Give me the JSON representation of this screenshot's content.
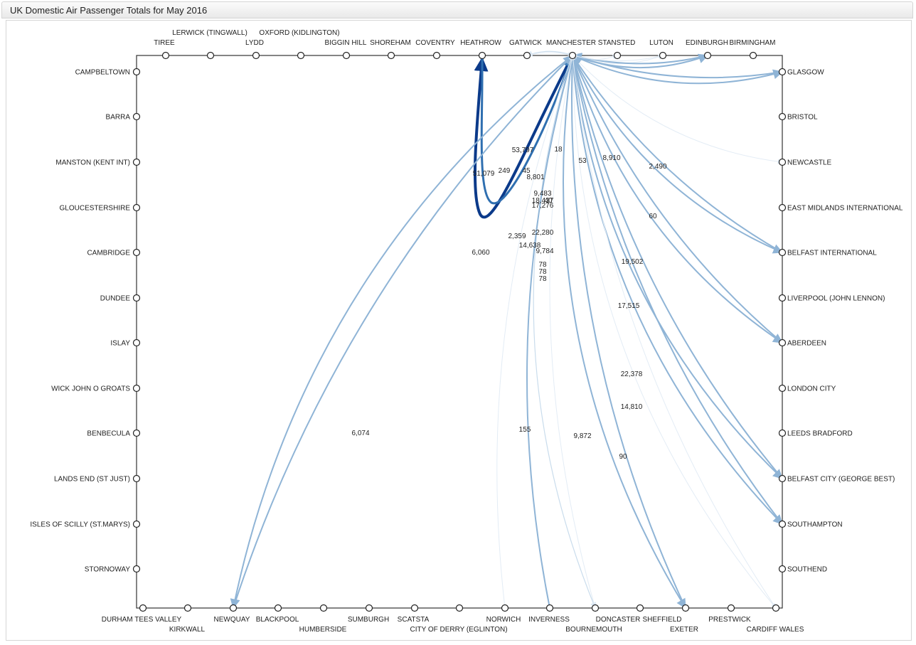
{
  "window": {
    "title": "UK Domestic Air Passenger Totals for May 2016"
  },
  "chart_data": {
    "type": "flow-diagram",
    "colors": {
      "flow_light": "#9ec0dc",
      "flow_mid": "#5f93c3",
      "flow_dark": "#0b3a8a",
      "flow_faint": "#dfeaf4"
    },
    "airports": {
      "top": [
        "TIREE",
        "LERWICK (TINGWALL)",
        "LYDD",
        "OXFORD (KIDLINGTON)",
        "BIGGIN HILL",
        "SHOREHAM",
        "COVENTRY",
        "HEATHROW",
        "GATWICK",
        "MANCHESTER",
        "STANSTED",
        "LUTON",
        "EDINBURGH",
        "BIRMINGHAM"
      ],
      "left": [
        "CAMPBELTOWN",
        "BARRA",
        "MANSTON (KENT INT)",
        "GLOUCESTERSHIRE",
        "CAMBRIDGE",
        "DUNDEE",
        "ISLAY",
        "WICK JOHN O GROATS",
        "BENBECULA",
        "LANDS END (ST JUST)",
        "ISLES OF SCILLY (ST.MARYS)",
        "STORNOWAY"
      ],
      "right": [
        "GLASGOW",
        "BRISTOL",
        "NEWCASTLE",
        "EAST MIDLANDS INTERNATIONAL",
        "BELFAST INTERNATIONAL",
        "LIVERPOOL (JOHN LENNON)",
        "ABERDEEN",
        "LONDON CITY",
        "LEEDS BRADFORD",
        "BELFAST CITY (GEORGE BEST)",
        "SOUTHAMPTON",
        "SOUTHEND"
      ],
      "bottom": [
        "DURHAM TEES VALLEY",
        "KIRKWALL",
        "NEWQUAY",
        "BLACKPOOL",
        "HUMBERSIDE",
        "SUMBURGH",
        "SCATSTA",
        "CITY OF DERRY (EGLINTON)",
        "NORWICH",
        "INVERNESS",
        "BOURNEMOUTH",
        "DONCASTER",
        "SHEFFIELD",
        "EXETER",
        "PRESTWICK",
        "CARDIFF WALES"
      ]
    },
    "flows": [
      {
        "from": "MANCHESTER",
        "to": "HEATHROW",
        "passengers": "53,797"
      },
      {
        "from": "HEATHROW",
        "to": "MANCHESTER",
        "passengers": "51,079"
      },
      {
        "from": "MANCHESTER",
        "to": "GATWICK",
        "passengers": "249"
      },
      {
        "from": "MANCHESTER",
        "to": "LUTON",
        "passengers": "18"
      },
      {
        "from": "MANCHESTER",
        "to": "STANSTED",
        "passengers": "53"
      },
      {
        "from": "MANCHESTER",
        "to": "EDINBURGH",
        "passengers": "8,910"
      },
      {
        "from": "MANCHESTER",
        "to": "GLASGOW",
        "passengers": "2,490"
      },
      {
        "from": "MANCHESTER",
        "to": "NEWCASTLE",
        "passengers": "60"
      },
      {
        "from": "MANCHESTER",
        "to": "BELFAST INTERNATIONAL",
        "passengers": "19,502"
      },
      {
        "from": "MANCHESTER",
        "to": "ABERDEEN",
        "passengers": "17,515"
      },
      {
        "from": "MANCHESTER",
        "to": "BELFAST CITY (GEORGE BEST)",
        "passengers": "22,378"
      },
      {
        "from": "MANCHESTER",
        "to": "SOUTHAMPTON",
        "passengers": "14,810"
      },
      {
        "from": "MANCHESTER",
        "to": "CARDIFF WALES",
        "passengers": "90"
      },
      {
        "from": "MANCHESTER",
        "to": "EXETER",
        "passengers": "9,872"
      },
      {
        "from": "MANCHESTER",
        "to": "BOURNEMOUTH",
        "passengers": "155"
      },
      {
        "from": "MANCHESTER",
        "to": "NEWQUAY",
        "passengers": "6,074"
      },
      {
        "from": "NEWQUAY",
        "to": "MANCHESTER",
        "passengers": "6,060"
      },
      {
        "from": "INVERNESS",
        "to": "MANCHESTER",
        "passengers": "2,359"
      },
      {
        "from": "EDINBURGH",
        "to": "MANCHESTER",
        "passengers": "8,801"
      },
      {
        "from": "GLASGOW",
        "to": "MANCHESTER",
        "passengers": "17,276"
      },
      {
        "from": "BELFAST INTERNATIONAL",
        "to": "MANCHESTER",
        "passengers": "22,280"
      },
      {
        "from": "ABERDEEN",
        "to": "MANCHESTER",
        "passengers": "14,638"
      },
      {
        "from": "BELFAST CITY (GEORGE BEST)",
        "to": "MANCHESTER",
        "passengers": "9,784"
      },
      {
        "from": "SOUTHAMPTON",
        "to": "MANCHESTER",
        "passengers": "9,483"
      },
      {
        "from": "EXETER",
        "to": "MANCHESTER",
        "passengers": "18,437"
      },
      {
        "from": "NORWICH",
        "to": "MANCHESTER",
        "passengers": "78"
      },
      {
        "from": "CARDIFF WALES",
        "to": "MANCHESTER",
        "passengers": "40"
      },
      {
        "from": "BOURNEMOUTH",
        "to": "MANCHESTER",
        "passengers": "78"
      },
      {
        "from": "GATWICK",
        "to": "MANCHESTER",
        "passengers": "45"
      },
      {
        "from": "LUTON",
        "to": "MANCHESTER",
        "passengers": "78"
      }
    ]
  }
}
